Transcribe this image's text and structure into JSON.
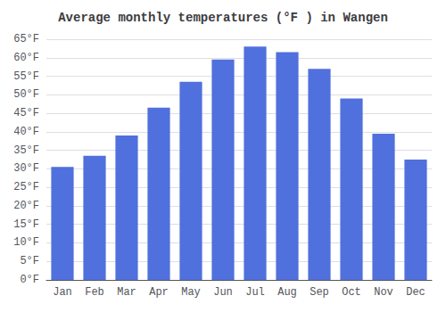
{
  "chart_data": {
    "type": "bar",
    "title": "Average monthly temperatures (°F ) in Wangen",
    "categories": [
      "Jan",
      "Feb",
      "Mar",
      "Apr",
      "May",
      "Jun",
      "Jul",
      "Aug",
      "Sep",
      "Oct",
      "Nov",
      "Dec"
    ],
    "values": [
      30.5,
      33.5,
      39.0,
      46.5,
      53.5,
      59.5,
      63.0,
      61.5,
      57.0,
      49.0,
      39.5,
      32.5
    ],
    "ylim": [
      0,
      65
    ],
    "yticks": [
      {
        "value": 0,
        "label": "0°F"
      },
      {
        "value": 5,
        "label": "5°F"
      },
      {
        "value": 10,
        "label": "10°F"
      },
      {
        "value": 15,
        "label": "15°F"
      },
      {
        "value": 20,
        "label": "20°F"
      },
      {
        "value": 25,
        "label": "25°F"
      },
      {
        "value": 30,
        "label": "30°F"
      },
      {
        "value": 35,
        "label": "35°F"
      },
      {
        "value": 40,
        "label": "40°F"
      },
      {
        "value": 45,
        "label": "45°F"
      },
      {
        "value": 50,
        "label": "50°F"
      },
      {
        "value": 55,
        "label": "55°F"
      },
      {
        "value": 60,
        "label": "60°F"
      },
      {
        "value": 65,
        "label": "65°F"
      }
    ],
    "grid": true
  }
}
